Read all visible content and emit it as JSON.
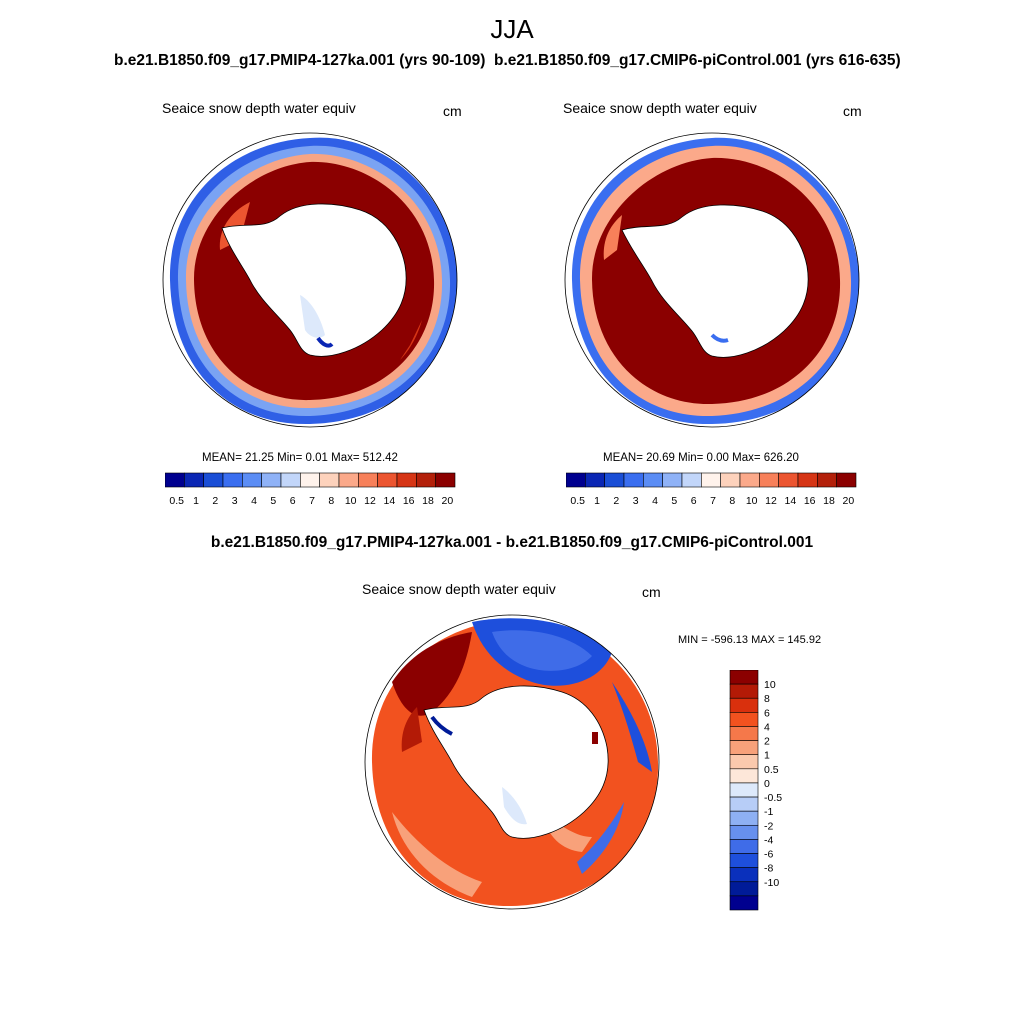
{
  "figure": {
    "title": "JJA",
    "left_run": "b.e21.B1850.f09_g17.PMIP4-127ka.001 (yrs 90-109)",
    "right_run": "b.e21.B1850.f09_g17.CMIP6-piControl.001 (yrs 616-635)",
    "diff_title": "b.e21.B1850.f09_g17.PMIP4-127ka.001 - b.e21.B1850.f09_g17.CMIP6-piControl.001"
  },
  "panels": {
    "left": {
      "label": "Seaice snow depth water equiv",
      "units": "cm",
      "stats": "MEAN=  21.25  Min=    0.01  Max= 512.42"
    },
    "right": {
      "label": "Seaice snow depth water equiv",
      "units": "cm",
      "stats": "MEAN=  20.69  Min=    0.00  Max= 626.20"
    },
    "diff": {
      "label": "Seaice snow depth water equiv",
      "units": "cm",
      "minmax": "MIN = -596.13 MAX = 145.92"
    }
  },
  "colorbars": {
    "abs_colors": [
      "#00008f",
      "#0a26b4",
      "#1a4ed6",
      "#3a6ef0",
      "#5b8df5",
      "#8fb2f7",
      "#c2d6fa",
      "#fff3ec",
      "#fdd2bc",
      "#fba98a",
      "#f7805a",
      "#ec5530",
      "#d63515",
      "#b3200a",
      "#8b0000"
    ],
    "abs_labels": [
      "0.5",
      "1",
      "2",
      "3",
      "4",
      "5",
      "6",
      "7",
      "8",
      "10",
      "12",
      "14",
      "16",
      "18",
      "20"
    ],
    "diff_colors": [
      "#8b0000",
      "#b31a06",
      "#d9300d",
      "#f2521f",
      "#f5784a",
      "#f8a17a",
      "#fbc9ad",
      "#fde7d9",
      "#dde9fb",
      "#b7cdf7",
      "#8eb0f3",
      "#6790ee",
      "#3f6ce8",
      "#1e4fdc",
      "#0a30bc",
      "#001b98",
      "#00008f"
    ],
    "diff_labels": [
      "10",
      "8",
      "6",
      "4",
      "2",
      "1",
      "0.5",
      "0",
      "-0.5",
      "-1",
      "-2",
      "-4",
      "-6",
      "-8",
      "-10"
    ]
  },
  "chart_data": {
    "type": "heatmap",
    "variable": "Seaice snow depth water equiv",
    "units": "cm",
    "season": "JJA",
    "maps": [
      {
        "name": "b.e21.B1850.f09_g17.PMIP4-127ka.001 (yrs 90-109)",
        "mean": 21.25,
        "min": 0.01,
        "max": 512.42,
        "levels": [
          0.5,
          1,
          2,
          3,
          4,
          5,
          6,
          7,
          8,
          10,
          12,
          14,
          16,
          18,
          20
        ]
      },
      {
        "name": "b.e21.B1850.f09_g17.CMIP6-piControl.001 (yrs 616-635)",
        "mean": 20.69,
        "min": 0.0,
        "max": 626.2,
        "levels": [
          0.5,
          1,
          2,
          3,
          4,
          5,
          6,
          7,
          8,
          10,
          12,
          14,
          16,
          18,
          20
        ]
      },
      {
        "name": "b.e21.B1850.f09_g17.PMIP4-127ka.001 - b.e21.B1850.f09_g17.CMIP6-piControl.001",
        "min": -596.13,
        "max": 145.92,
        "levels": [
          -10,
          -8,
          -6,
          -4,
          -2,
          -1,
          -0.5,
          0,
          0.5,
          1,
          2,
          4,
          6,
          8,
          10
        ]
      }
    ]
  }
}
